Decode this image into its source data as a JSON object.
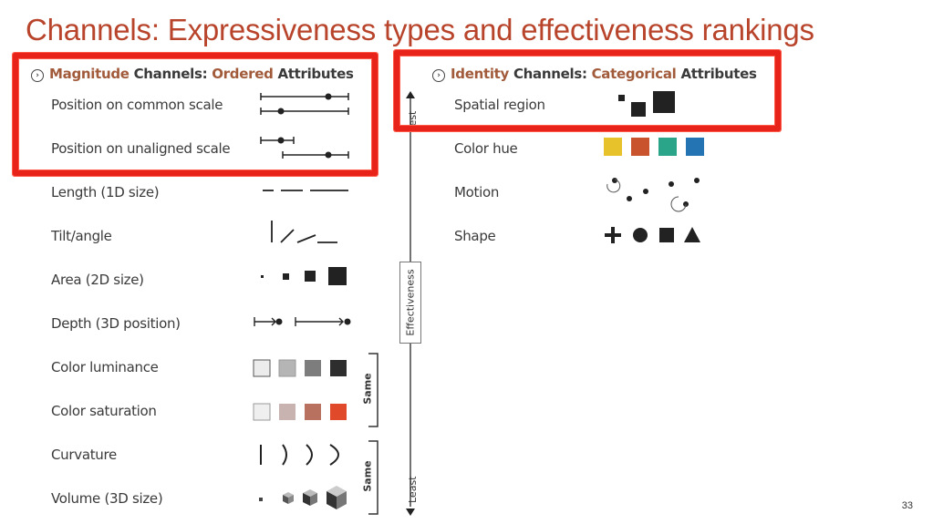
{
  "slide": {
    "title": "Channels: Expressiveness types and effectiveness rankings",
    "page_number": "33"
  },
  "magnitude_panel": {
    "heading_kind": "Magnitude",
    "heading_mid": " Channels: ",
    "heading_type": "Ordered",
    "heading_tail": " Attributes",
    "rows": [
      {
        "label": "Position on common scale",
        "icon": "position-common-scale-icon"
      },
      {
        "label": "Position on unaligned scale",
        "icon": "position-unaligned-scale-icon"
      },
      {
        "label": "Length (1D size)",
        "icon": "length-icon"
      },
      {
        "label": "Tilt/angle",
        "icon": "tilt-angle-icon"
      },
      {
        "label": "Area (2D size)",
        "icon": "area-icon"
      },
      {
        "label": "Depth (3D position)",
        "icon": "depth-icon"
      },
      {
        "label": "Color luminance",
        "icon": "color-luminance-icon"
      },
      {
        "label": "Color saturation",
        "icon": "color-saturation-icon"
      },
      {
        "label": "Curvature",
        "icon": "curvature-icon"
      },
      {
        "label": "Volume (3D size)",
        "icon": "volume-icon"
      }
    ],
    "same_groups": [
      "Same",
      "Same"
    ]
  },
  "identity_panel": {
    "heading_kind": "Identity",
    "heading_mid": " Channels: ",
    "heading_type": "Categorical",
    "heading_tail": " Attributes",
    "rows": [
      {
        "label": "Spatial region",
        "icon": "spatial-region-icon"
      },
      {
        "label": "Color hue",
        "icon": "color-hue-icon"
      },
      {
        "label": "Motion",
        "icon": "motion-icon"
      },
      {
        "label": "Shape",
        "icon": "shape-icon"
      }
    ]
  },
  "effectiveness_axis": {
    "label": "Effectiveness",
    "top_end": "Best",
    "bottom_end": "Least"
  },
  "colors": {
    "title": "#b8442b",
    "accent": "#a15a3a",
    "highlight": "#e8241a",
    "luminance": [
      "#ececec",
      "#b5b5b5",
      "#7d7d7d",
      "#2e2e2e"
    ],
    "saturation": [
      "#efefef",
      "#c9b3b0",
      "#b8705f",
      "#e04a2a"
    ],
    "hue": [
      "#e8c22a",
      "#c9532d",
      "#2aa58a",
      "#2474b3"
    ]
  }
}
